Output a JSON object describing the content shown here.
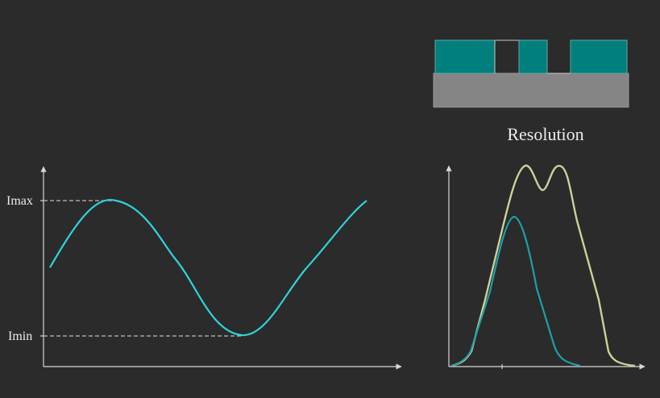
{
  "labels": {
    "i_max": "Imax",
    "i_min": "Imin",
    "resolution": "Resolution"
  },
  "colors": {
    "background": "#2b2b2b",
    "axis": "#d8d8d8",
    "cyan_curve": "#2fd3d8",
    "teal_curve": "#1f9fa6",
    "yellow_curve": "#cfcf9a",
    "mask_teal": "#017f7d",
    "substrate_gray": "#858585",
    "dashed": "#bcbcbc"
  }
}
